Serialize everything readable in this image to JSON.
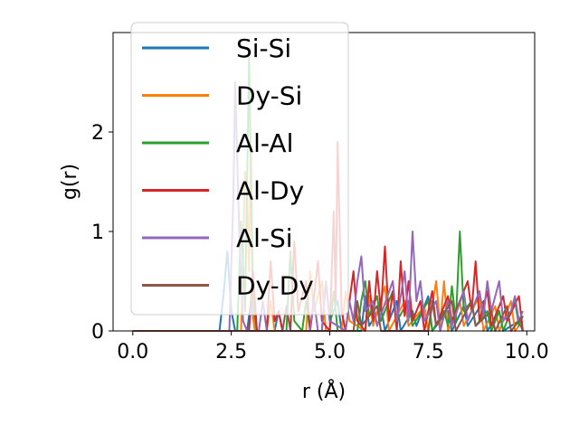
{
  "chart_data": {
    "type": "line",
    "xlabel": "r (Å)",
    "ylabel": "g(r)",
    "xlim": [
      -0.5,
      10.2
    ],
    "ylim": [
      0,
      3.0
    ],
    "xticks": [
      0.0,
      2.5,
      5.0,
      7.5,
      10.0
    ],
    "xtick_labels": [
      "0.0",
      "2.5",
      "5.0",
      "7.5",
      "10.0"
    ],
    "yticks": [
      0,
      1,
      2
    ],
    "ytick_labels": [
      "0",
      "1",
      "2"
    ],
    "grid": false,
    "legend_position": "top-left",
    "series": [
      {
        "name": "Si-Si",
        "color": "#1f77b4",
        "points": [
          [
            0.0,
            0
          ],
          [
            2.2,
            0
          ],
          [
            2.3,
            0.35
          ],
          [
            2.4,
            0.8
          ],
          [
            2.5,
            0.2
          ],
          [
            2.6,
            0
          ],
          [
            2.9,
            0
          ],
          [
            3.0,
            0.3
          ],
          [
            3.1,
            0
          ],
          [
            3.6,
            0
          ],
          [
            3.7,
            0.2
          ],
          [
            3.8,
            0
          ],
          [
            4.8,
            0
          ],
          [
            4.9,
            0.5
          ],
          [
            5.0,
            0.1
          ],
          [
            5.2,
            0.3
          ],
          [
            5.3,
            0
          ],
          [
            5.8,
            0
          ],
          [
            5.9,
            0.35
          ],
          [
            6.0,
            0.05
          ],
          [
            6.3,
            0.25
          ],
          [
            6.4,
            0
          ],
          [
            6.7,
            0.3
          ],
          [
            6.8,
            0
          ],
          [
            7.1,
            0.2
          ],
          [
            7.2,
            0.05
          ],
          [
            7.5,
            0.35
          ],
          [
            7.6,
            0
          ],
          [
            8.0,
            0.2
          ],
          [
            8.1,
            0
          ],
          [
            8.4,
            0.25
          ],
          [
            8.5,
            0.05
          ],
          [
            8.9,
            0.3
          ],
          [
            9.0,
            0
          ],
          [
            9.3,
            0.2
          ],
          [
            9.4,
            0
          ],
          [
            9.8,
            0.1
          ],
          [
            9.9,
            0
          ]
        ]
      },
      {
        "name": "Dy-Si",
        "color": "#ff7f0e",
        "points": [
          [
            0.0,
            0
          ],
          [
            2.75,
            0
          ],
          [
            2.85,
            1.6
          ],
          [
            2.9,
            1.4
          ],
          [
            2.95,
            0.6
          ],
          [
            3.0,
            1.85
          ],
          [
            3.05,
            0.2
          ],
          [
            3.1,
            0
          ],
          [
            3.4,
            0
          ],
          [
            3.5,
            0.3
          ],
          [
            3.6,
            0
          ],
          [
            4.4,
            0
          ],
          [
            4.5,
            0.6
          ],
          [
            4.6,
            0.2
          ],
          [
            4.8,
            0.5
          ],
          [
            4.9,
            0
          ],
          [
            5.3,
            0
          ],
          [
            5.4,
            0.4
          ],
          [
            5.5,
            0.1
          ],
          [
            5.9,
            0
          ],
          [
            6.0,
            0.35
          ],
          [
            6.1,
            0.05
          ],
          [
            6.4,
            0.45
          ],
          [
            6.5,
            0
          ],
          [
            6.9,
            0.3
          ],
          [
            7.0,
            0.05
          ],
          [
            7.4,
            0.25
          ],
          [
            7.5,
            0
          ],
          [
            7.7,
            0.5
          ],
          [
            7.8,
            0.05
          ],
          [
            7.9,
            0.5
          ],
          [
            8.0,
            0
          ],
          [
            8.3,
            0.3
          ],
          [
            8.4,
            0.05
          ],
          [
            8.8,
            0.35
          ],
          [
            8.9,
            0
          ],
          [
            9.2,
            0.25
          ],
          [
            9.3,
            0
          ],
          [
            9.6,
            0.3
          ],
          [
            9.7,
            0
          ],
          [
            9.9,
            0.1
          ]
        ]
      },
      {
        "name": "Al-Al",
        "color": "#2ca02c",
        "points": [
          [
            0.0,
            0
          ],
          [
            2.65,
            0
          ],
          [
            2.75,
            1.1
          ],
          [
            2.85,
            0.2
          ],
          [
            2.95,
            2.75
          ],
          [
            3.05,
            0.3
          ],
          [
            3.15,
            0
          ],
          [
            3.9,
            0
          ],
          [
            4.0,
            0.8
          ],
          [
            4.1,
            0.1
          ],
          [
            4.3,
            0
          ],
          [
            4.4,
            0.3
          ],
          [
            4.5,
            0
          ],
          [
            5.0,
            0
          ],
          [
            5.1,
            0.4
          ],
          [
            5.2,
            0
          ],
          [
            5.7,
            0
          ],
          [
            5.8,
            0.3
          ],
          [
            5.9,
            0.5
          ],
          [
            6.0,
            0.15
          ],
          [
            6.2,
            0.35
          ],
          [
            6.3,
            0.1
          ],
          [
            6.6,
            0.4
          ],
          [
            6.7,
            0.1
          ],
          [
            7.0,
            0.3
          ],
          [
            7.1,
            0.05
          ],
          [
            7.5,
            0.3
          ],
          [
            7.6,
            0
          ],
          [
            7.9,
            0.2
          ],
          [
            8.0,
            0.05
          ],
          [
            8.1,
            0.45
          ],
          [
            8.2,
            0.1
          ],
          [
            8.3,
            1.0
          ],
          [
            8.4,
            0.2
          ],
          [
            8.6,
            0.3
          ],
          [
            8.7,
            0.05
          ],
          [
            9.0,
            0.2
          ],
          [
            9.1,
            0
          ],
          [
            9.3,
            0.2
          ],
          [
            9.4,
            0
          ],
          [
            9.7,
            0.3
          ],
          [
            9.8,
            0.05
          ],
          [
            9.9,
            0.15
          ]
        ]
      },
      {
        "name": "Al-Dy",
        "color": "#d62728",
        "points": [
          [
            0.0,
            0
          ],
          [
            2.95,
            0
          ],
          [
            3.05,
            0.6
          ],
          [
            3.15,
            0
          ],
          [
            3.4,
            0
          ],
          [
            3.5,
            0.7
          ],
          [
            3.6,
            0.1
          ],
          [
            3.7,
            0.2
          ],
          [
            3.8,
            0
          ],
          [
            4.0,
            0
          ],
          [
            4.1,
            0.9
          ],
          [
            4.2,
            0.2
          ],
          [
            4.4,
            0.5
          ],
          [
            4.5,
            0
          ],
          [
            4.7,
            0.7
          ],
          [
            4.8,
            0.1
          ],
          [
            5.0,
            0
          ],
          [
            5.1,
            1.2
          ],
          [
            5.15,
            0.3
          ],
          [
            5.2,
            1.9
          ],
          [
            5.3,
            0.2
          ],
          [
            5.4,
            0
          ],
          [
            5.6,
            0.6
          ],
          [
            5.7,
            0.1
          ],
          [
            5.9,
            0
          ],
          [
            6.0,
            0.5
          ],
          [
            6.1,
            0.1
          ],
          [
            6.2,
            0.6
          ],
          [
            6.3,
            0.2
          ],
          [
            6.4,
            0.85
          ],
          [
            6.5,
            0.1
          ],
          [
            6.6,
            0.4
          ],
          [
            6.7,
            0
          ],
          [
            6.8,
            0.7
          ],
          [
            6.9,
            0.15
          ],
          [
            7.0,
            0.5
          ],
          [
            7.1,
            0.1
          ],
          [
            7.3,
            0.3
          ],
          [
            7.4,
            0
          ],
          [
            7.6,
            0.4
          ],
          [
            7.7,
            0.05
          ],
          [
            8.0,
            0.35
          ],
          [
            8.1,
            0.1
          ],
          [
            8.5,
            0.5
          ],
          [
            8.6,
            0.2
          ],
          [
            8.7,
            0.7
          ],
          [
            8.8,
            0.1
          ],
          [
            9.0,
            0.4
          ],
          [
            9.1,
            0.05
          ],
          [
            9.4,
            0.35
          ],
          [
            9.5,
            0.1
          ],
          [
            9.8,
            0.35
          ],
          [
            9.9,
            0
          ]
        ]
      },
      {
        "name": "Al-Si",
        "color": "#9467bd",
        "points": [
          [
            0.0,
            0
          ],
          [
            2.45,
            0
          ],
          [
            2.55,
            1.3
          ],
          [
            2.6,
            2.5
          ],
          [
            2.7,
            1.0
          ],
          [
            2.8,
            0.1
          ],
          [
            2.9,
            0
          ],
          [
            3.2,
            0
          ],
          [
            3.3,
            0.3
          ],
          [
            3.4,
            0
          ],
          [
            4.5,
            0
          ],
          [
            4.6,
            0.3
          ],
          [
            4.7,
            0
          ],
          [
            4.8,
            0
          ],
          [
            4.9,
            0.5
          ],
          [
            5.0,
            0.1
          ],
          [
            5.4,
            0
          ],
          [
            5.5,
            0.3
          ],
          [
            5.6,
            0.1
          ],
          [
            5.7,
            0.5
          ],
          [
            5.8,
            0.75
          ],
          [
            5.9,
            0.2
          ],
          [
            6.1,
            0.3
          ],
          [
            6.2,
            0.05
          ],
          [
            6.6,
            0.5
          ],
          [
            6.7,
            0.1
          ],
          [
            6.9,
            0.6
          ],
          [
            7.0,
            0.1
          ],
          [
            7.1,
            1.0
          ],
          [
            7.2,
            0.3
          ],
          [
            7.3,
            0.5
          ],
          [
            7.4,
            0.1
          ],
          [
            7.7,
            0.3
          ],
          [
            7.8,
            0
          ],
          [
            8.0,
            0.3
          ],
          [
            8.1,
            0.05
          ],
          [
            8.4,
            0.4
          ],
          [
            8.5,
            0.1
          ],
          [
            8.8,
            0.4
          ],
          [
            8.9,
            0.15
          ],
          [
            9.0,
            0.5
          ],
          [
            9.1,
            0.2
          ],
          [
            9.3,
            0.5
          ],
          [
            9.4,
            0.1
          ],
          [
            9.6,
            0.2
          ],
          [
            9.7,
            0.35
          ],
          [
            9.8,
            0.1
          ],
          [
            9.9,
            0.2
          ]
        ]
      },
      {
        "name": "Dy-Dy",
        "color": "#8c564b",
        "points": [
          [
            0.0,
            0
          ],
          [
            3.8,
            0
          ],
          [
            3.9,
            0.25
          ],
          [
            4.0,
            0
          ],
          [
            5.6,
            0
          ],
          [
            5.7,
            0.3
          ],
          [
            5.8,
            0.05
          ],
          [
            6.2,
            0.25
          ],
          [
            6.3,
            0
          ],
          [
            7.5,
            0
          ],
          [
            7.6,
            0.3
          ],
          [
            7.7,
            0.05
          ],
          [
            8.1,
            0.3
          ],
          [
            8.2,
            0
          ],
          [
            8.6,
            0.3
          ],
          [
            8.7,
            0.05
          ],
          [
            9.1,
            0.2
          ],
          [
            9.2,
            0
          ],
          [
            9.5,
            0.25
          ],
          [
            9.6,
            0
          ],
          [
            9.9,
            0.15
          ]
        ]
      }
    ]
  }
}
